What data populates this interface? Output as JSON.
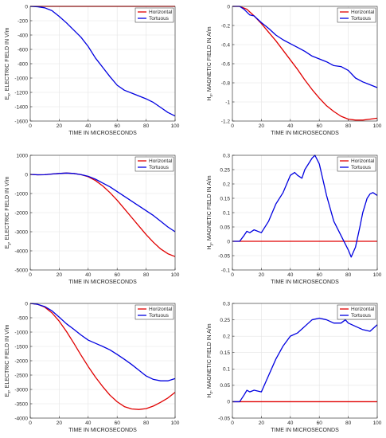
{
  "chart_data": [
    {
      "type": "line",
      "ylabel_main": "E",
      "ylabel_sub": "x",
      "ylabel_rest": ", ELECTRIC FIELD IN V/m",
      "xlabel": "TIME IN MICROSECONDS",
      "xlim": [
        0,
        100
      ],
      "ylim": [
        -1600,
        0
      ],
      "xticks": [
        0,
        20,
        40,
        60,
        80,
        100
      ],
      "yticks": [
        0,
        -200,
        -400,
        -600,
        -800,
        -1000,
        -1200,
        -1400,
        -1600
      ],
      "grid": true,
      "legend_position": "top-right",
      "series": [
        {
          "name": "Horizontal",
          "color": "#e00000",
          "x": [
            0,
            100
          ],
          "y": [
            0,
            0
          ]
        },
        {
          "name": "Tortuous",
          "color": "#0000e0",
          "x": [
            0,
            5,
            10,
            15,
            20,
            25,
            30,
            35,
            40,
            45,
            50,
            55,
            60,
            65,
            70,
            75,
            80,
            85,
            90,
            95,
            100
          ],
          "y": [
            0,
            -5,
            -20,
            -60,
            -140,
            -230,
            -330,
            -430,
            -560,
            -720,
            -850,
            -980,
            -1100,
            -1170,
            -1210,
            -1250,
            -1290,
            -1340,
            -1410,
            -1480,
            -1530
          ]
        }
      ]
    },
    {
      "type": "line",
      "ylabel_main": "H",
      "ylabel_sub": "x",
      "ylabel_rest": ", MAGNETIC FIELD IN A/m",
      "xlabel": "TIME IN MICROSECONDS",
      "xlim": [
        0,
        100
      ],
      "ylim": [
        -1.2,
        0
      ],
      "xticks": [
        0,
        20,
        40,
        60,
        80,
        100
      ],
      "yticks": [
        0,
        -0.2,
        -0.4,
        -0.6,
        -0.8,
        -1,
        -1.2
      ],
      "grid": true,
      "legend_position": "top-right",
      "series": [
        {
          "name": "Horizontal",
          "color": "#e00000",
          "x": [
            0,
            5,
            10,
            15,
            20,
            25,
            30,
            35,
            40,
            45,
            50,
            55,
            60,
            65,
            70,
            75,
            80,
            85,
            90,
            95,
            100
          ],
          "y": [
            0,
            0,
            -0.03,
            -0.1,
            -0.18,
            -0.27,
            -0.36,
            -0.46,
            -0.56,
            -0.66,
            -0.77,
            -0.87,
            -0.96,
            -1.04,
            -1.1,
            -1.15,
            -1.18,
            -1.19,
            -1.19,
            -1.18,
            -1.17
          ]
        },
        {
          "name": "Tortuous",
          "color": "#0000e0",
          "x": [
            0,
            5,
            8,
            12,
            15,
            20,
            25,
            30,
            35,
            40,
            45,
            50,
            55,
            60,
            65,
            70,
            75,
            80,
            85,
            90,
            95,
            100
          ],
          "y": [
            0,
            0,
            -0.03,
            -0.09,
            -0.1,
            -0.17,
            -0.23,
            -0.3,
            -0.35,
            -0.39,
            -0.43,
            -0.47,
            -0.52,
            -0.55,
            -0.58,
            -0.62,
            -0.63,
            -0.67,
            -0.75,
            -0.79,
            -0.82,
            -0.85
          ]
        }
      ]
    },
    {
      "type": "line",
      "ylabel_main": "E",
      "ylabel_sub": "y",
      "ylabel_rest": ", ELECTRIC FIELD IN V/m",
      "xlabel": "TIME IN MICROSECONDS",
      "xlim": [
        0,
        100
      ],
      "ylim": [
        -5000,
        1000
      ],
      "xticks": [
        0,
        20,
        40,
        60,
        80,
        100
      ],
      "yticks": [
        1000,
        0,
        -1000,
        -2000,
        -3000,
        -4000,
        -5000
      ],
      "grid": true,
      "legend_position": "top-right",
      "series": [
        {
          "name": "Horizontal",
          "color": "#e00000",
          "x": [
            0,
            5,
            10,
            15,
            20,
            25,
            30,
            35,
            40,
            45,
            50,
            55,
            60,
            65,
            70,
            75,
            80,
            85,
            90,
            95,
            100
          ],
          "y": [
            0,
            -20,
            -15,
            20,
            50,
            70,
            50,
            -10,
            -120,
            -320,
            -600,
            -950,
            -1350,
            -1800,
            -2250,
            -2700,
            -3150,
            -3550,
            -3900,
            -4150,
            -4300
          ]
        },
        {
          "name": "Tortuous",
          "color": "#0000e0",
          "x": [
            0,
            5,
            10,
            15,
            20,
            25,
            30,
            35,
            40,
            45,
            50,
            55,
            60,
            65,
            70,
            75,
            80,
            85,
            90,
            95,
            100
          ],
          "y": [
            0,
            -20,
            -15,
            20,
            50,
            70,
            50,
            -10,
            -100,
            -250,
            -450,
            -650,
            -900,
            -1150,
            -1400,
            -1650,
            -1900,
            -2150,
            -2450,
            -2750,
            -3000
          ]
        }
      ]
    },
    {
      "type": "line",
      "ylabel_main": "H",
      "ylabel_sub": "y",
      "ylabel_rest": ", MAGNETIC FIELD IN A/m",
      "xlabel": "TIME IN MICROSECONDS",
      "xlim": [
        0,
        100
      ],
      "ylim": [
        -0.1,
        0.3
      ],
      "xticks": [
        0,
        20,
        40,
        60,
        80,
        100
      ],
      "yticks": [
        0.3,
        0.25,
        0.2,
        0.15,
        0.1,
        0.05,
        0,
        -0.05,
        -0.1
      ],
      "grid": true,
      "legend_position": "top-right",
      "series": [
        {
          "name": "Horizontal",
          "color": "#e00000",
          "x": [
            0,
            100
          ],
          "y": [
            0,
            0
          ]
        },
        {
          "name": "Tortuous",
          "color": "#0000e0",
          "x": [
            0,
            5,
            8,
            10,
            12,
            15,
            20,
            25,
            30,
            35,
            40,
            43,
            45,
            48,
            50,
            55,
            57,
            60,
            65,
            70,
            75,
            80,
            82,
            85,
            88,
            90,
            93,
            95,
            97,
            100
          ],
          "y": [
            0,
            0,
            0.02,
            0.035,
            0.03,
            0.04,
            0.03,
            0.07,
            0.13,
            0.17,
            0.23,
            0.24,
            0.23,
            0.22,
            0.25,
            0.29,
            0.3,
            0.27,
            0.16,
            0.07,
            0.02,
            -0.03,
            -0.055,
            -0.02,
            0.05,
            0.1,
            0.15,
            0.165,
            0.17,
            0.16
          ]
        }
      ]
    },
    {
      "type": "line",
      "ylabel_main": "E",
      "ylabel_sub": "z",
      "ylabel_rest": ", ELECTRIC FIELD IN V/m",
      "xlabel": "TIME IN MICROSECONDS",
      "xlim": [
        0,
        100
      ],
      "ylim": [
        -4000,
        0
      ],
      "xticks": [
        0,
        20,
        40,
        60,
        80,
        100
      ],
      "yticks": [
        0,
        -500,
        -1000,
        -1500,
        -2000,
        -2500,
        -3000,
        -3500,
        -4000
      ],
      "grid": true,
      "legend_position": "top-right",
      "series": [
        {
          "name": "Horizontal",
          "color": "#e00000",
          "x": [
            0,
            5,
            10,
            15,
            20,
            25,
            30,
            35,
            40,
            45,
            50,
            55,
            60,
            65,
            70,
            75,
            80,
            85,
            90,
            95,
            100
          ],
          "y": [
            0,
            -30,
            -130,
            -330,
            -620,
            -980,
            -1380,
            -1800,
            -2200,
            -2570,
            -2900,
            -3200,
            -3430,
            -3600,
            -3680,
            -3700,
            -3670,
            -3580,
            -3450,
            -3300,
            -3100
          ]
        },
        {
          "name": "Tortuous",
          "color": "#0000e0",
          "x": [
            0,
            5,
            10,
            15,
            20,
            25,
            30,
            35,
            40,
            45,
            50,
            55,
            60,
            65,
            70,
            75,
            80,
            85,
            90,
            95,
            100
          ],
          "y": [
            0,
            -30,
            -110,
            -260,
            -480,
            -710,
            -900,
            -1100,
            -1280,
            -1390,
            -1500,
            -1620,
            -1780,
            -1950,
            -2130,
            -2330,
            -2530,
            -2650,
            -2700,
            -2700,
            -2620
          ]
        }
      ]
    },
    {
      "type": "line",
      "ylabel_main": "H",
      "ylabel_sub": "z",
      "ylabel_rest": ", MAGNETIC FIELD IN A/m",
      "xlabel": "TIME IN MICROSECONDS",
      "xlim": [
        0,
        100
      ],
      "ylim": [
        -0.05,
        0.3
      ],
      "xticks": [
        0,
        20,
        40,
        60,
        80,
        100
      ],
      "yticks": [
        0.3,
        0.25,
        0.2,
        0.15,
        0.1,
        0.05,
        0,
        -0.05
      ],
      "grid": true,
      "legend_position": "top-right",
      "series": [
        {
          "name": "Horizontal",
          "color": "#e00000",
          "x": [
            0,
            100
          ],
          "y": [
            0,
            0
          ]
        },
        {
          "name": "Tortuous",
          "color": "#0000e0",
          "x": [
            0,
            5,
            8,
            10,
            12,
            15,
            20,
            25,
            30,
            35,
            40,
            45,
            50,
            55,
            60,
            65,
            70,
            75,
            78,
            80,
            85,
            90,
            95,
            100
          ],
          "y": [
            0,
            0,
            0.02,
            0.035,
            0.03,
            0.035,
            0.03,
            0.08,
            0.13,
            0.17,
            0.2,
            0.21,
            0.23,
            0.25,
            0.255,
            0.25,
            0.24,
            0.24,
            0.25,
            0.24,
            0.23,
            0.22,
            0.215,
            0.235
          ]
        }
      ]
    }
  ]
}
